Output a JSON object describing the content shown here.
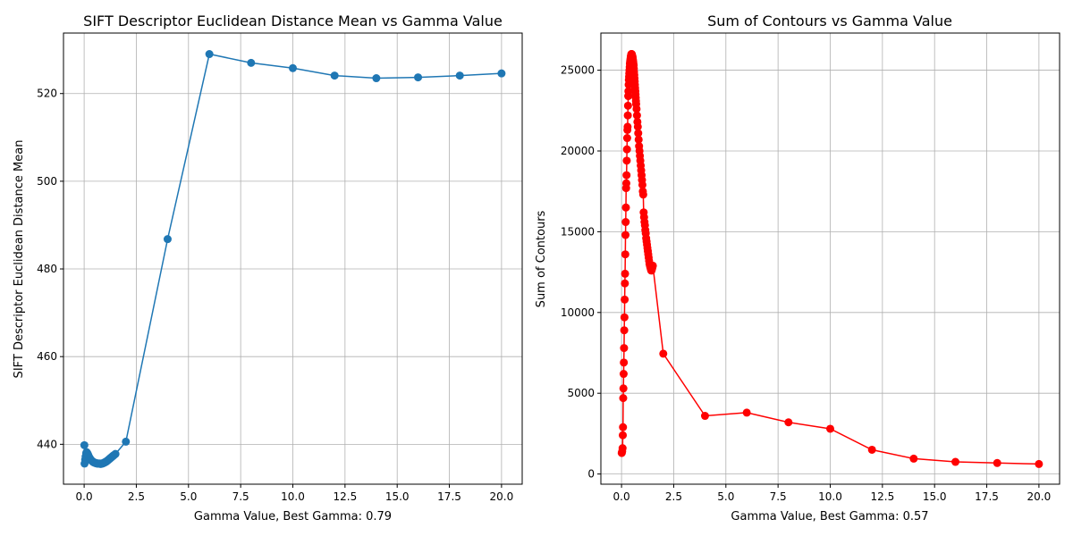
{
  "chart_data": [
    {
      "type": "line",
      "title": "SIFT Descriptor Euclidean Distance Mean vs Gamma Value",
      "xlabel": "Gamma Value, Best Gamma: 0.79",
      "ylabel": "SIFT Descriptor Euclidean Distance Mean",
      "xlim": [
        -0.99,
        20.99
      ],
      "ylim": [
        430.9,
        533.8
      ],
      "xticks": [
        "0.0",
        "2.5",
        "5.0",
        "7.5",
        "10.0",
        "12.5",
        "15.0",
        "17.5",
        "20.0"
      ],
      "yticks": [
        "440",
        "460",
        "480",
        "500",
        "520"
      ],
      "grid": true,
      "color": "#1f77b4",
      "marker": "circle",
      "series": [
        {
          "x": [
            0.01,
            0.02,
            0.05,
            0.07,
            0.1,
            0.12,
            0.15,
            0.17,
            0.2,
            0.22,
            0.25,
            0.27,
            0.3,
            0.32,
            0.35,
            0.37,
            0.4,
            0.42,
            0.45,
            0.47,
            0.5,
            0.52,
            0.55,
            0.57,
            0.6,
            0.62,
            0.65,
            0.67,
            0.7,
            0.72,
            0.75,
            0.77,
            0.79,
            0.82,
            0.85,
            0.87,
            0.9,
            0.92,
            0.95,
            0.97,
            1.0,
            1.02,
            1.05,
            1.07,
            1.1,
            1.12,
            1.15,
            1.17,
            1.2,
            1.22,
            1.25,
            1.27,
            1.3,
            1.32,
            1.35,
            1.37,
            1.4,
            1.42,
            1.45,
            1.5,
            2,
            4,
            6,
            8,
            10,
            12,
            14,
            16,
            18,
            20
          ],
          "y": [
            439.8,
            435.6,
            436.5,
            437.2,
            438.0,
            438.2,
            438.0,
            437.8,
            437.5,
            437.2,
            437.0,
            436.8,
            436.6,
            436.5,
            436.3,
            436.2,
            436.1,
            436.0,
            435.9,
            435.9,
            435.8,
            435.8,
            435.7,
            435.7,
            435.7,
            435.6,
            435.6,
            435.6,
            435.6,
            435.6,
            435.6,
            435.6,
            435.5,
            435.6,
            435.6,
            435.6,
            435.7,
            435.7,
            435.8,
            435.8,
            435.9,
            436.0,
            436.0,
            436.1,
            436.2,
            436.3,
            436.4,
            436.5,
            436.6,
            436.7,
            436.8,
            436.9,
            437.0,
            437.1,
            437.2,
            437.3,
            437.4,
            437.5,
            437.6,
            437.8,
            440.6,
            486.8,
            529.0,
            527.0,
            525.8,
            524.1,
            523.5,
            523.7,
            524.1,
            524.6
          ]
        }
      ]
    },
    {
      "type": "line",
      "title": "Sum of Contours vs Gamma Value",
      "xlabel": "Gamma Value, Best Gamma: 0.57",
      "ylabel": "Sum of Contours",
      "xlim": [
        -0.99,
        20.99
      ],
      "ylim": [
        -630,
        27300
      ],
      "xticks": [
        "0.0",
        "2.5",
        "5.0",
        "7.5",
        "10.0",
        "12.5",
        "15.0",
        "17.5",
        "20.0"
      ],
      "yticks": [
        "0",
        "5000",
        "10000",
        "15000",
        "20000",
        "25000"
      ],
      "grid": true,
      "color": "#ff0000",
      "marker": "circle",
      "series": [
        {
          "x": [
            0.01,
            0.03,
            0.05,
            0.06,
            0.07,
            0.08,
            0.09,
            0.1,
            0.11,
            0.12,
            0.13,
            0.14,
            0.15,
            0.16,
            0.17,
            0.18,
            0.19,
            0.2,
            0.21,
            0.22,
            0.23,
            0.24,
            0.25,
            0.26,
            0.27,
            0.28,
            0.29,
            0.3,
            0.31,
            0.32,
            0.33,
            0.34,
            0.35,
            0.36,
            0.37,
            0.38,
            0.39,
            0.4,
            0.41,
            0.42,
            0.43,
            0.44,
            0.45,
            0.46,
            0.47,
            0.48,
            0.49,
            0.5,
            0.51,
            0.52,
            0.53,
            0.54,
            0.55,
            0.56,
            0.57,
            0.58,
            0.59,
            0.6,
            0.61,
            0.62,
            0.63,
            0.64,
            0.65,
            0.66,
            0.67,
            0.68,
            0.69,
            0.7,
            0.72,
            0.74,
            0.76,
            0.78,
            0.8,
            0.82,
            0.84,
            0.86,
            0.88,
            0.9,
            0.92,
            0.94,
            0.96,
            0.98,
            1.0,
            1.02,
            1.04,
            1.06,
            1.08,
            1.1,
            1.12,
            1.14,
            1.16,
            1.18,
            1.2,
            1.22,
            1.24,
            1.26,
            1.28,
            1.3,
            1.32,
            1.34,
            1.36,
            1.38,
            1.4,
            1.42,
            1.44,
            1.46,
            1.48,
            1.5,
            2,
            4,
            6,
            8,
            10,
            12,
            14,
            16,
            18,
            20
          ],
          "y": [
            1300,
            1400,
            1600,
            2400,
            2900,
            4700,
            5300,
            6200,
            6900,
            7800,
            8900,
            9700,
            10800,
            11800,
            12400,
            13600,
            14800,
            15600,
            16500,
            17700,
            18000,
            18500,
            19400,
            20100,
            20800,
            21300,
            21500,
            22200,
            22800,
            23400,
            23700,
            24100,
            24400,
            24600,
            24800,
            25000,
            25200,
            25400,
            25500,
            25600,
            25700,
            25800,
            25900,
            25900,
            26000,
            26000,
            26000,
            25950,
            25900,
            25850,
            25800,
            25700,
            25600,
            25500,
            25400,
            25300,
            25100,
            24900,
            24700,
            24500,
            24300,
            24100,
            23900,
            23700,
            23500,
            23300,
            23100,
            22900,
            22600,
            22200,
            21800,
            21500,
            21100,
            20700,
            20300,
            20000,
            19700,
            19400,
            19100,
            18800,
            18500,
            18200,
            17900,
            17500,
            17300,
            16200,
            15900,
            15600,
            15400,
            15100,
            14900,
            14600,
            14400,
            14200,
            14000,
            13800,
            13600,
            13400,
            13200,
            13000,
            12900,
            12800,
            12700,
            12600,
            12600,
            12700,
            12800,
            12900,
            7450,
            3600,
            3800,
            3200,
            2800,
            1500,
            950,
            750,
            680,
            620
          ]
        }
      ]
    }
  ]
}
